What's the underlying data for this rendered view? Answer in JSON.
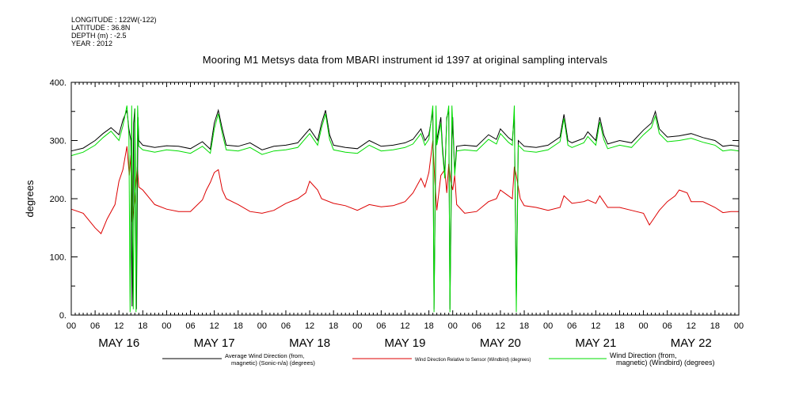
{
  "meta": {
    "longitude": "LONGITUDE : 122W(-122)",
    "latitude": "LATITUDE : 36.8N",
    "depth": "DEPTH (m) : -2.5",
    "year": "YEAR : 2012"
  },
  "chart_data": {
    "type": "line",
    "title": "Mooring M1 Metsys data from MBARI instrument id 1397 at original sampling intervals",
    "ylabel": "degrees",
    "xlabel": "",
    "ylim": [
      0,
      400
    ],
    "y_ticks": [
      "0.",
      "100.",
      "200.",
      "300.",
      "400."
    ],
    "x_hour_ticks": [
      "00",
      "06",
      "12",
      "18",
      "00",
      "06",
      "12",
      "18",
      "00",
      "06",
      "12",
      "18",
      "00",
      "06",
      "12",
      "18",
      "00",
      "06",
      "12",
      "18",
      "00",
      "06",
      "12",
      "18",
      "00",
      "06",
      "12",
      "18",
      "00"
    ],
    "x_days": [
      "MAY 16",
      "MAY 17",
      "MAY 18",
      "MAY 19",
      "MAY 20",
      "MAY 21",
      "MAY 22"
    ],
    "x_range_hours": [
      0,
      168
    ],
    "series": [
      {
        "name": "Average Wind Direction (from, magnetic) (Sonic-n/a) (degrees)",
        "legend_lines": [
          "Average Wind Direction (from,",
          "magnetic) (Sonic-n/a) (degrees)"
        ],
        "color": "#000000",
        "points": [
          [
            0,
            282
          ],
          [
            3,
            287
          ],
          [
            6,
            300
          ],
          [
            8,
            312
          ],
          [
            10,
            322
          ],
          [
            12,
            310
          ],
          [
            13,
            335
          ],
          [
            14,
            352
          ],
          [
            14.5,
            320
          ],
          [
            15,
            300
          ],
          [
            15.3,
            15
          ],
          [
            15.7,
            330
          ],
          [
            16,
            355
          ],
          [
            16.4,
            10
          ],
          [
            16.8,
            340
          ],
          [
            17,
            300
          ],
          [
            18,
            292
          ],
          [
            21,
            288
          ],
          [
            24,
            291
          ],
          [
            27,
            290
          ],
          [
            30,
            286
          ],
          [
            33,
            298
          ],
          [
            35,
            285
          ],
          [
            36,
            330
          ],
          [
            37,
            352
          ],
          [
            38,
            320
          ],
          [
            39,
            292
          ],
          [
            42,
            290
          ],
          [
            45,
            296
          ],
          [
            48,
            284
          ],
          [
            51,
            290
          ],
          [
            54,
            292
          ],
          [
            57,
            296
          ],
          [
            60,
            320
          ],
          [
            62,
            300
          ],
          [
            63,
            330
          ],
          [
            64,
            352
          ],
          [
            65,
            310
          ],
          [
            66,
            292
          ],
          [
            69,
            288
          ],
          [
            72,
            286
          ],
          [
            75,
            300
          ],
          [
            78,
            290
          ],
          [
            81,
            292
          ],
          [
            84,
            296
          ],
          [
            86,
            302
          ],
          [
            88,
            320
          ],
          [
            89,
            300
          ],
          [
            90,
            310
          ],
          [
            91,
            350
          ],
          [
            91.3,
            10
          ],
          [
            91.8,
            320
          ],
          [
            92,
            300
          ],
          [
            93,
            340
          ],
          [
            93.4,
            290
          ],
          [
            94,
            240
          ],
          [
            94.5,
            340
          ],
          [
            95,
            350
          ],
          [
            95.3,
            10
          ],
          [
            95.8,
            300
          ],
          [
            96,
            340
          ],
          [
            96.5,
            245
          ],
          [
            97,
            290
          ],
          [
            99,
            292
          ],
          [
            102,
            290
          ],
          [
            105,
            310
          ],
          [
            107,
            302
          ],
          [
            108,
            320
          ],
          [
            110,
            305
          ],
          [
            111,
            300
          ],
          [
            111.5,
            345
          ],
          [
            112,
            30
          ],
          [
            112.5,
            300
          ],
          [
            114,
            290
          ],
          [
            117,
            288
          ],
          [
            120,
            292
          ],
          [
            123,
            306
          ],
          [
            124,
            345
          ],
          [
            125,
            300
          ],
          [
            126,
            296
          ],
          [
            129,
            304
          ],
          [
            130,
            315
          ],
          [
            132,
            300
          ],
          [
            133,
            340
          ],
          [
            134,
            310
          ],
          [
            135,
            294
          ],
          [
            138,
            300
          ],
          [
            141,
            296
          ],
          [
            144,
            318
          ],
          [
            146,
            330
          ],
          [
            147,
            350
          ],
          [
            148,
            320
          ],
          [
            150,
            306
          ],
          [
            153,
            308
          ],
          [
            156,
            312
          ],
          [
            159,
            305
          ],
          [
            162,
            300
          ],
          [
            164,
            290
          ],
          [
            166,
            292
          ],
          [
            168,
            290
          ]
        ]
      },
      {
        "name": "Wind Direction Relative to Sensor (Windbird) (degrees)",
        "legend_lines": [
          "Wind Direction Relative to Sensor (Windbird) (degrees)"
        ],
        "color": "#dd0000",
        "points": [
          [
            0,
            182
          ],
          [
            3,
            175
          ],
          [
            6,
            150
          ],
          [
            7.5,
            140
          ],
          [
            9,
            165
          ],
          [
            11,
            190
          ],
          [
            12,
            230
          ],
          [
            13,
            250
          ],
          [
            14,
            290
          ],
          [
            14.6,
            240
          ],
          [
            15,
            275
          ],
          [
            15.4,
            160
          ],
          [
            16,
            200
          ],
          [
            16.6,
            255
          ],
          [
            17,
            220
          ],
          [
            18,
            215
          ],
          [
            21,
            190
          ],
          [
            24,
            182
          ],
          [
            27,
            178
          ],
          [
            30,
            178
          ],
          [
            33,
            198
          ],
          [
            34,
            215
          ],
          [
            35,
            228
          ],
          [
            36,
            245
          ],
          [
            37,
            250
          ],
          [
            38,
            215
          ],
          [
            39,
            200
          ],
          [
            42,
            190
          ],
          [
            45,
            178
          ],
          [
            48,
            175
          ],
          [
            51,
            180
          ],
          [
            54,
            192
          ],
          [
            57,
            200
          ],
          [
            59,
            210
          ],
          [
            60,
            230
          ],
          [
            62,
            215
          ],
          [
            63,
            200
          ],
          [
            66,
            192
          ],
          [
            69,
            188
          ],
          [
            72,
            180
          ],
          [
            75,
            190
          ],
          [
            78,
            186
          ],
          [
            81,
            188
          ],
          [
            84,
            195
          ],
          [
            86,
            210
          ],
          [
            88,
            235
          ],
          [
            89,
            220
          ],
          [
            90,
            245
          ],
          [
            91,
            300
          ],
          [
            91.5,
            230
          ],
          [
            92,
            180
          ],
          [
            93,
            240
          ],
          [
            94,
            250
          ],
          [
            94.5,
            210
          ],
          [
            95,
            260
          ],
          [
            95.5,
            230
          ],
          [
            96,
            215
          ],
          [
            96.5,
            240
          ],
          [
            97,
            190
          ],
          [
            99,
            175
          ],
          [
            102,
            178
          ],
          [
            105,
            195
          ],
          [
            107,
            200
          ],
          [
            108,
            215
          ],
          [
            110,
            205
          ],
          [
            111,
            200
          ],
          [
            111.5,
            255
          ],
          [
            112,
            240
          ],
          [
            113,
            200
          ],
          [
            114,
            188
          ],
          [
            117,
            185
          ],
          [
            120,
            180
          ],
          [
            123,
            185
          ],
          [
            124,
            205
          ],
          [
            126,
            192
          ],
          [
            129,
            195
          ],
          [
            130,
            198
          ],
          [
            132,
            192
          ],
          [
            133,
            205
          ],
          [
            134,
            195
          ],
          [
            135,
            185
          ],
          [
            138,
            185
          ],
          [
            141,
            180
          ],
          [
            144,
            175
          ],
          [
            145.5,
            155
          ],
          [
            147,
            170
          ],
          [
            148,
            180
          ],
          [
            150,
            195
          ],
          [
            152,
            205
          ],
          [
            153,
            215
          ],
          [
            155,
            210
          ],
          [
            156,
            195
          ],
          [
            159,
            195
          ],
          [
            162,
            185
          ],
          [
            164,
            176
          ],
          [
            166,
            178
          ],
          [
            168,
            178
          ]
        ]
      },
      {
        "name": "Wind Direction (from, magnetic) (Windbird) (degrees)",
        "legend_lines": [
          "Wind Direction (from,",
          "magnetic) (Windbird) (degrees)"
        ],
        "color": "#00dd00",
        "points": [
          [
            0,
            274
          ],
          [
            3,
            280
          ],
          [
            6,
            292
          ],
          [
            8,
            305
          ],
          [
            10,
            316
          ],
          [
            12,
            300
          ],
          [
            13,
            325
          ],
          [
            14,
            360
          ],
          [
            14.5,
            310
          ],
          [
            14.8,
            5
          ],
          [
            15.2,
            360
          ],
          [
            15.6,
            10
          ],
          [
            16,
            355
          ],
          [
            16.3,
            5
          ],
          [
            16.7,
            360
          ],
          [
            17,
            290
          ],
          [
            18,
            284
          ],
          [
            21,
            280
          ],
          [
            24,
            284
          ],
          [
            27,
            282
          ],
          [
            30,
            278
          ],
          [
            33,
            290
          ],
          [
            35,
            278
          ],
          [
            36,
            320
          ],
          [
            37,
            346
          ],
          [
            38,
            312
          ],
          [
            39,
            284
          ],
          [
            42,
            282
          ],
          [
            45,
            288
          ],
          [
            48,
            276
          ],
          [
            51,
            282
          ],
          [
            54,
            284
          ],
          [
            57,
            288
          ],
          [
            60,
            312
          ],
          [
            62,
            292
          ],
          [
            63,
            322
          ],
          [
            64,
            346
          ],
          [
            65,
            302
          ],
          [
            66,
            284
          ],
          [
            69,
            280
          ],
          [
            72,
            278
          ],
          [
            75,
            292
          ],
          [
            78,
            282
          ],
          [
            81,
            284
          ],
          [
            84,
            288
          ],
          [
            86,
            294
          ],
          [
            88,
            312
          ],
          [
            89,
            292
          ],
          [
            90,
            302
          ],
          [
            91,
            360
          ],
          [
            91.3,
            5
          ],
          [
            91.8,
            360
          ],
          [
            92,
            292
          ],
          [
            93,
            330
          ],
          [
            93.4,
            282
          ],
          [
            94,
            235
          ],
          [
            94.5,
            335
          ],
          [
            95,
            360
          ],
          [
            95.3,
            5
          ],
          [
            95.8,
            360
          ],
          [
            96,
            330
          ],
          [
            96.5,
            240
          ],
          [
            97,
            282
          ],
          [
            99,
            284
          ],
          [
            102,
            282
          ],
          [
            105,
            302
          ],
          [
            107,
            294
          ],
          [
            108,
            312
          ],
          [
            110,
            297
          ],
          [
            111,
            292
          ],
          [
            111.5,
            360
          ],
          [
            112,
            5
          ],
          [
            112.5,
            292
          ],
          [
            114,
            282
          ],
          [
            117,
            280
          ],
          [
            120,
            284
          ],
          [
            123,
            298
          ],
          [
            124,
            338
          ],
          [
            125,
            292
          ],
          [
            126,
            288
          ],
          [
            129,
            296
          ],
          [
            130,
            307
          ],
          [
            132,
            292
          ],
          [
            133,
            332
          ],
          [
            134,
            302
          ],
          [
            135,
            286
          ],
          [
            138,
            292
          ],
          [
            141,
            288
          ],
          [
            144,
            310
          ],
          [
            146,
            322
          ],
          [
            147,
            342
          ],
          [
            148,
            312
          ],
          [
            150,
            298
          ],
          [
            153,
            300
          ],
          [
            156,
            304
          ],
          [
            159,
            297
          ],
          [
            162,
            292
          ],
          [
            164,
            282
          ],
          [
            166,
            284
          ],
          [
            168,
            282
          ]
        ]
      }
    ],
    "grid": false,
    "legend_position": "bottom"
  }
}
